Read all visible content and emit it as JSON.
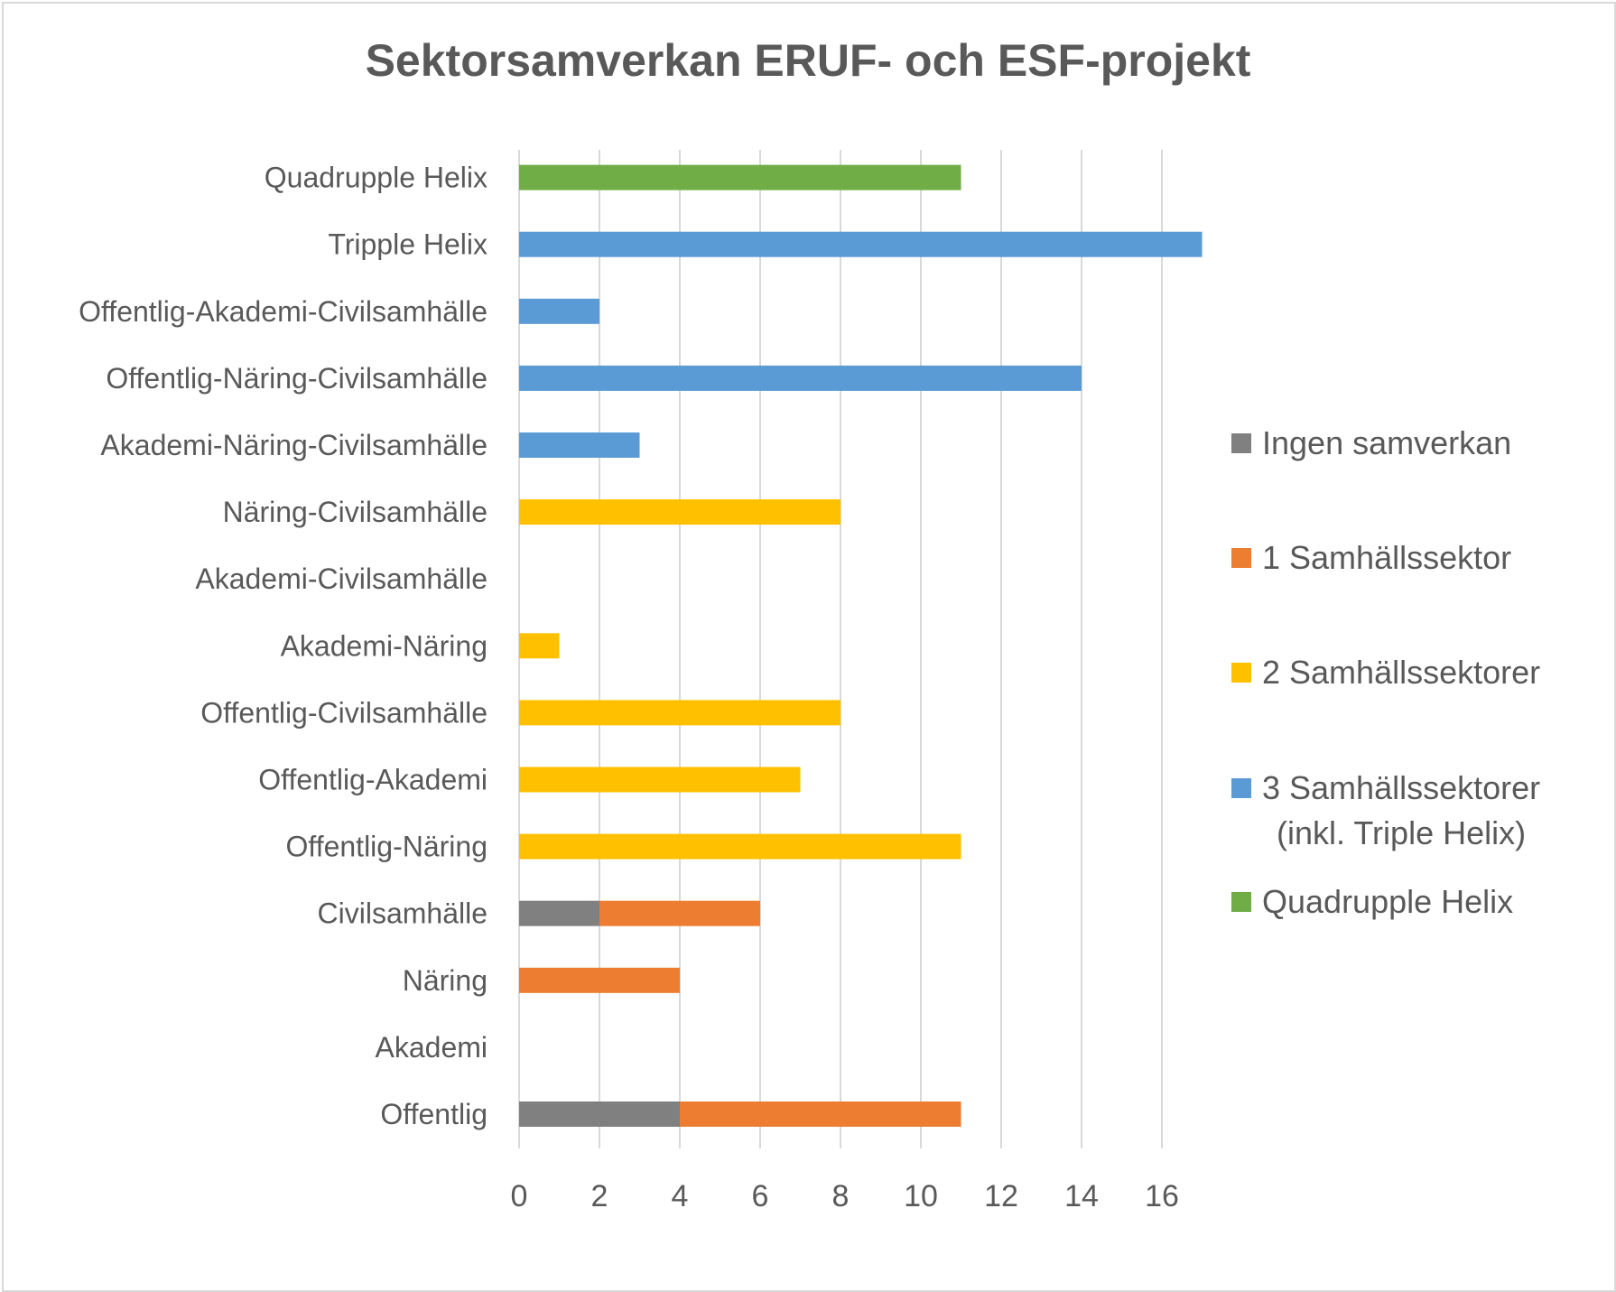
{
  "chart_data": {
    "type": "bar",
    "orientation": "horizontal",
    "stacked": true,
    "title": "Sektorsamverkan ERUF- och ESF-projekt",
    "categories": [
      "Offentlig",
      "Akademi",
      "Näring",
      "Civilsamhälle",
      "Offentlig-Näring",
      "Offentlig-Akademi",
      "Offentlig-Civilsamhälle",
      "Akademi-Näring",
      "Akademi-Civilsamhälle",
      "Näring-Civilsamhälle",
      "Akademi-Näring-Civilsamhälle",
      "Offentlig-Näring-Civilsamhälle",
      "Offentlig-Akademi-Civilsamhälle",
      "Tripple Helix",
      "Quadrupple Helix"
    ],
    "series": [
      {
        "name": "Ingen samverkan",
        "color": "#808080",
        "values": [
          4,
          0,
          0,
          2,
          0,
          0,
          0,
          0,
          0,
          0,
          0,
          0,
          0,
          0,
          0
        ]
      },
      {
        "name": "1 Samhällssektor",
        "color": "#ed7d31",
        "values": [
          7,
          0,
          4,
          4,
          0,
          0,
          0,
          0,
          0,
          0,
          0,
          0,
          0,
          0,
          0
        ]
      },
      {
        "name": "2 Samhällssektorer",
        "color": "#ffc000",
        "values": [
          0,
          0,
          0,
          0,
          11,
          7,
          8,
          1,
          0,
          8,
          0,
          0,
          0,
          0,
          0
        ]
      },
      {
        "name": "3 Samhällssektorer\n(inkl. Triple Helix)",
        "color": "#5b9bd5",
        "values": [
          0,
          0,
          0,
          0,
          0,
          0,
          0,
          0,
          0,
          0,
          3,
          14,
          2,
          17,
          0
        ]
      },
      {
        "name": "Quadrupple Helix",
        "color": "#70ad47",
        "values": [
          0,
          0,
          0,
          0,
          0,
          0,
          0,
          0,
          0,
          0,
          0,
          0,
          0,
          0,
          11
        ]
      }
    ],
    "xlim": [
      0,
      17
    ],
    "xticks": [
      0,
      2,
      4,
      6,
      8,
      10,
      12,
      14,
      16
    ],
    "grid": true,
    "legend_position": "right",
    "gridline_color": "#d9d9d9"
  }
}
